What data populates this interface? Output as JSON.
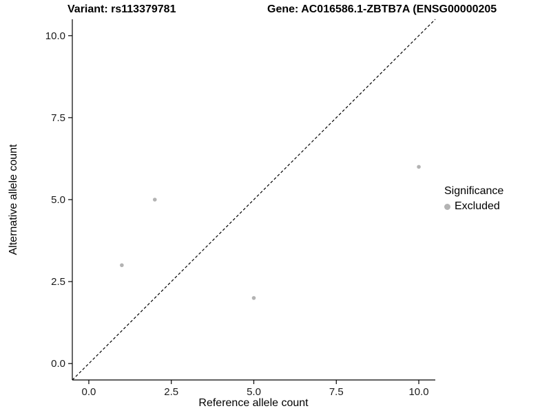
{
  "header": {
    "title_left": "Variant: rs113379781",
    "title_right": "Gene: AC016586.1-ZBTB7A (ENSG00000205"
  },
  "legend": {
    "title": "Significance",
    "items": [
      {
        "label": "Excluded",
        "color": "#b3b3b3"
      }
    ]
  },
  "chart_data": {
    "type": "scatter",
    "title_left": "Variant: rs113379781",
    "title_right": "Gene: AC016586.1-ZBTB7A (ENSG00000205",
    "xlabel": "Reference allele count",
    "ylabel": "Alternative allele count",
    "xlim": [
      -0.5,
      10.5
    ],
    "ylim": [
      -0.5,
      10.5
    ],
    "grid": false,
    "legend_position": "right",
    "xticks": {
      "values": [
        0,
        2.5,
        5,
        7.5,
        10
      ],
      "labels": [
        "0.0",
        "2.5",
        "5.0",
        "7.5",
        "10.0"
      ]
    },
    "yticks": {
      "values": [
        0,
        2.5,
        5,
        7.5,
        10
      ],
      "labels": [
        "0.0",
        "2.5",
        "5.0",
        "7.5",
        "10.0"
      ]
    },
    "series": [
      {
        "name": "Excluded",
        "color": "#b3b3b3",
        "points": [
          [
            1,
            3
          ],
          [
            2,
            5
          ],
          [
            5,
            2
          ],
          [
            10,
            6
          ]
        ]
      }
    ],
    "reference_line": {
      "type": "identity",
      "style": "dashed",
      "color": "#000000"
    }
  }
}
